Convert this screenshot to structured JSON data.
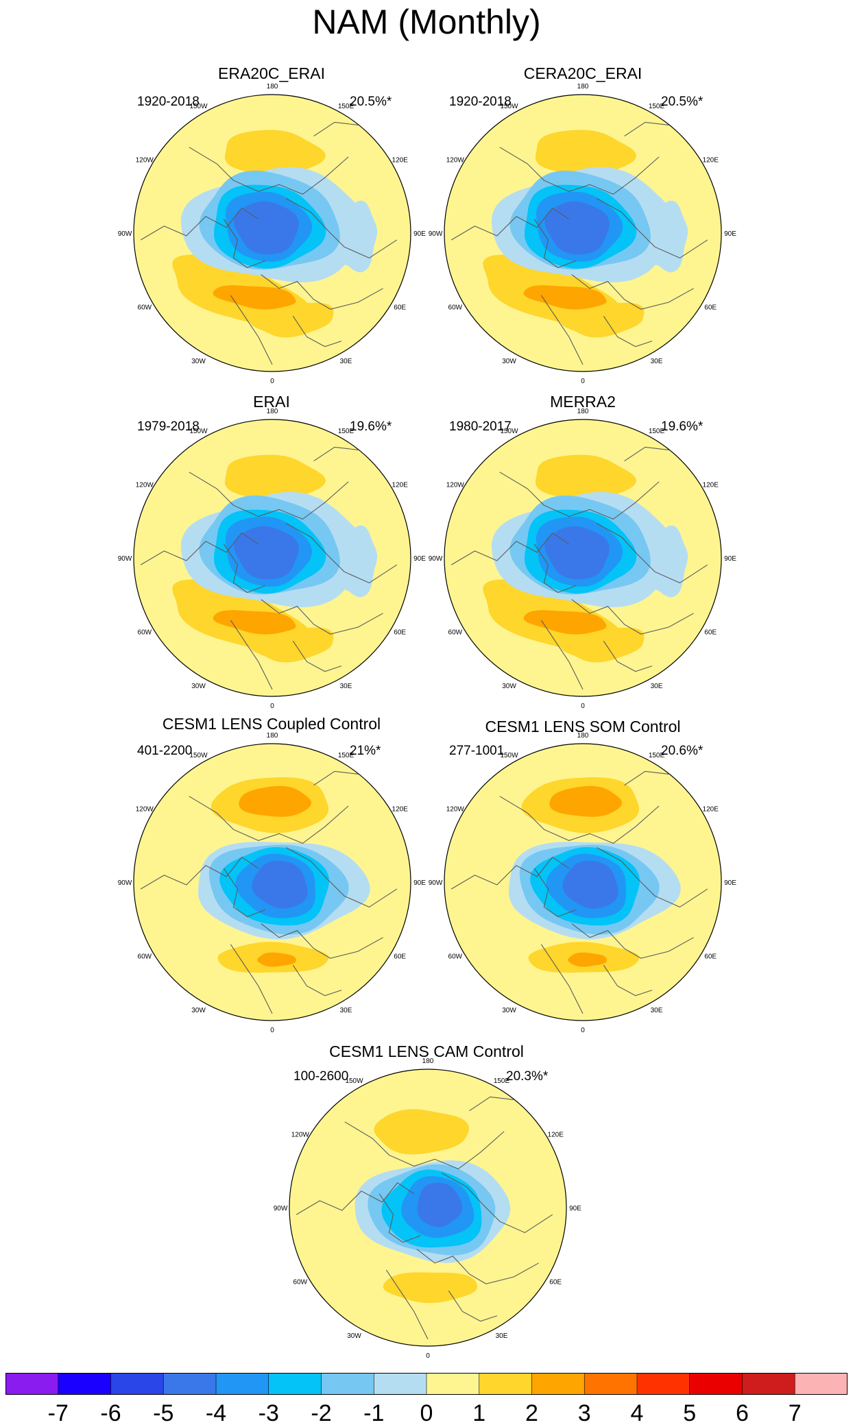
{
  "title": "NAM (Monthly)",
  "panels": [
    {
      "title": "ERA20C_ERAI",
      "period": "1920-2018",
      "variance": "20.5%*"
    },
    {
      "title": "CERA20C_ERAI",
      "period": "1920-2018",
      "variance": "20.5%*"
    },
    {
      "title": "ERAI",
      "period": "1979-2018",
      "variance": "19.6%*"
    },
    {
      "title": "MERRA2",
      "period": "1980-2017",
      "variance": "19.6%*"
    },
    {
      "title": "CESM1 LENS Coupled Control",
      "period": "401-2200",
      "variance": "21%*"
    },
    {
      "title": "CESM1 LENS SOM Control",
      "period": "277-1001",
      "variance": "20.6%*"
    },
    {
      "title": "CESM1 LENS CAM Control",
      "period": "100-2600",
      "variance": "20.3%*"
    }
  ],
  "longitude_labels": [
    "180",
    "150E",
    "120E",
    "90E",
    "60E",
    "30E",
    "0",
    "30W",
    "60W",
    "90W",
    "120W",
    "150W"
  ],
  "colorbar": {
    "colors": [
      "#8a1cf0",
      "#1a00ff",
      "#2a45e8",
      "#3a78ea",
      "#2196f5",
      "#03c3f7",
      "#76c8f2",
      "#b5ddf2",
      "#fef591",
      "#fed62c",
      "#fea500",
      "#ff7300",
      "#ff3200",
      "#eb0000",
      "#cf1c1c",
      "#fbb3b3"
    ],
    "labels": [
      "-7",
      "-6",
      "-5",
      "-4",
      "-3",
      "-2",
      "-1",
      "0",
      "1",
      "2",
      "3",
      "4",
      "5",
      "6",
      "7"
    ]
  }
}
